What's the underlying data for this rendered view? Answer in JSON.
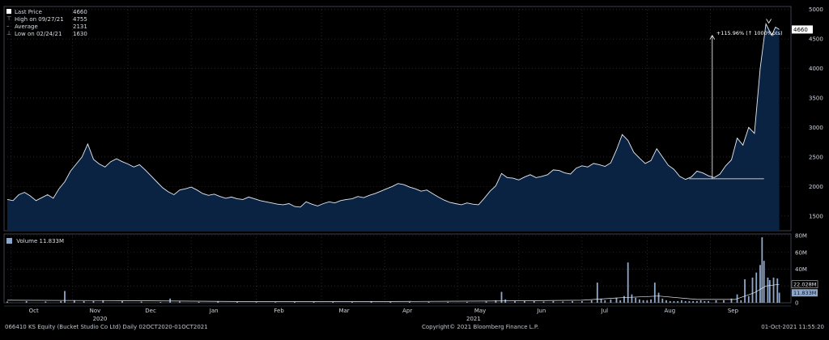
{
  "chart_data": {
    "type": "area",
    "legend": {
      "last_price_label": "Last Price",
      "last_price_value": "4660",
      "high_label": "High on 09/27/21",
      "high_value": "4755",
      "average_label": "Average",
      "average_value": "2131",
      "low_label": "Low on 02/24/21",
      "low_value": "1630"
    },
    "price_axis": {
      "ticks": [
        "5000",
        "4500",
        "4000",
        "3500",
        "3000",
        "2500",
        "2000",
        "1500"
      ],
      "ylim": [
        1250,
        5050
      ]
    },
    "last_price_tag": "4660",
    "annotation": "+115.96% (↑ 1000%pts)",
    "volume_legend": {
      "label": "Volume",
      "value": "11.833M"
    },
    "volume_axis": {
      "ticks": [
        "80M",
        "60M",
        "40M",
        "20M",
        "0"
      ],
      "ylim": [
        0,
        82
      ]
    },
    "volume_tags": [
      "22.028M",
      "11.833M"
    ],
    "months": [
      "Oct",
      "Nov",
      "Dec",
      "Jan",
      "Feb",
      "Mar",
      "Apr",
      "May",
      "Jun",
      "Jul",
      "Aug",
      "Sep"
    ],
    "years": [
      "2020",
      "2021"
    ],
    "price_series": [
      [
        0,
        1780
      ],
      [
        3,
        1760
      ],
      [
        6,
        1860
      ],
      [
        9,
        1900
      ],
      [
        12,
        1840
      ],
      [
        15,
        1760
      ],
      [
        18,
        1810
      ],
      [
        21,
        1860
      ],
      [
        24,
        1800
      ],
      [
        27,
        1960
      ],
      [
        30,
        2080
      ],
      [
        33,
        2260
      ],
      [
        36,
        2380
      ],
      [
        39,
        2500
      ],
      [
        42,
        2720
      ],
      [
        45,
        2460
      ],
      [
        48,
        2380
      ],
      [
        51,
        2330
      ],
      [
        54,
        2420
      ],
      [
        57,
        2470
      ],
      [
        60,
        2420
      ],
      [
        63,
        2380
      ],
      [
        66,
        2330
      ],
      [
        69,
        2370
      ],
      [
        72,
        2280
      ],
      [
        75,
        2180
      ],
      [
        78,
        2080
      ],
      [
        81,
        1980
      ],
      [
        84,
        1910
      ],
      [
        87,
        1860
      ],
      [
        90,
        1940
      ],
      [
        93,
        1960
      ],
      [
        96,
        1990
      ],
      [
        99,
        1940
      ],
      [
        102,
        1880
      ],
      [
        105,
        1850
      ],
      [
        108,
        1870
      ],
      [
        111,
        1830
      ],
      [
        114,
        1800
      ],
      [
        117,
        1820
      ],
      [
        120,
        1790
      ],
      [
        123,
        1780
      ],
      [
        126,
        1820
      ],
      [
        129,
        1790
      ],
      [
        132,
        1760
      ],
      [
        135,
        1740
      ],
      [
        138,
        1720
      ],
      [
        141,
        1700
      ],
      [
        144,
        1690
      ],
      [
        147,
        1710
      ],
      [
        150,
        1660
      ],
      [
        153,
        1650
      ],
      [
        156,
        1740
      ],
      [
        159,
        1700
      ],
      [
        162,
        1670
      ],
      [
        165,
        1710
      ],
      [
        168,
        1740
      ],
      [
        171,
        1720
      ],
      [
        174,
        1760
      ],
      [
        177,
        1780
      ],
      [
        180,
        1790
      ],
      [
        183,
        1830
      ],
      [
        186,
        1810
      ],
      [
        189,
        1850
      ],
      [
        192,
        1880
      ],
      [
        195,
        1920
      ],
      [
        198,
        1960
      ],
      [
        201,
        2000
      ],
      [
        204,
        2050
      ],
      [
        207,
        2030
      ],
      [
        210,
        1990
      ],
      [
        213,
        1960
      ],
      [
        216,
        1920
      ],
      [
        219,
        1940
      ],
      [
        222,
        1880
      ],
      [
        225,
        1820
      ],
      [
        228,
        1770
      ],
      [
        231,
        1730
      ],
      [
        234,
        1710
      ],
      [
        237,
        1690
      ],
      [
        240,
        1720
      ],
      [
        243,
        1700
      ],
      [
        246,
        1690
      ],
      [
        249,
        1800
      ],
      [
        252,
        1920
      ],
      [
        255,
        2010
      ],
      [
        258,
        2220
      ],
      [
        261,
        2150
      ],
      [
        264,
        2140
      ],
      [
        267,
        2110
      ],
      [
        270,
        2160
      ],
      [
        273,
        2200
      ],
      [
        276,
        2150
      ],
      [
        279,
        2170
      ],
      [
        282,
        2200
      ],
      [
        285,
        2280
      ],
      [
        288,
        2270
      ],
      [
        291,
        2230
      ],
      [
        294,
        2210
      ],
      [
        297,
        2310
      ],
      [
        300,
        2350
      ],
      [
        303,
        2330
      ],
      [
        306,
        2390
      ],
      [
        309,
        2370
      ],
      [
        312,
        2340
      ],
      [
        315,
        2400
      ],
      [
        318,
        2620
      ],
      [
        321,
        2880
      ],
      [
        324,
        2780
      ],
      [
        327,
        2580
      ],
      [
        330,
        2480
      ],
      [
        333,
        2390
      ],
      [
        336,
        2440
      ],
      [
        339,
        2640
      ],
      [
        342,
        2500
      ],
      [
        345,
        2360
      ],
      [
        348,
        2290
      ],
      [
        351,
        2170
      ],
      [
        354,
        2120
      ],
      [
        357,
        2160
      ],
      [
        360,
        2260
      ],
      [
        363,
        2230
      ],
      [
        366,
        2180
      ],
      [
        369,
        2150
      ],
      [
        372,
        2210
      ],
      [
        375,
        2350
      ],
      [
        378,
        2450
      ],
      [
        381,
        2820
      ],
      [
        384,
        2700
      ],
      [
        387,
        3000
      ],
      [
        390,
        2900
      ],
      [
        393,
        4000
      ],
      [
        396,
        4755
      ],
      [
        399,
        4560
      ],
      [
        401,
        4700
      ],
      [
        403,
        4660
      ]
    ],
    "volume_series": [
      [
        0,
        1.5
      ],
      [
        10,
        2
      ],
      [
        20,
        1.5
      ],
      [
        28,
        2
      ],
      [
        30,
        14
      ],
      [
        35,
        3
      ],
      [
        40,
        2
      ],
      [
        45,
        2
      ],
      [
        50,
        3
      ],
      [
        60,
        2
      ],
      [
        70,
        1.5
      ],
      [
        80,
        1
      ],
      [
        85,
        5
      ],
      [
        90,
        1.5
      ],
      [
        100,
        1
      ],
      [
        110,
        1.5
      ],
      [
        120,
        1
      ],
      [
        130,
        0.8
      ],
      [
        140,
        0.8
      ],
      [
        150,
        1
      ],
      [
        160,
        1
      ],
      [
        170,
        1
      ],
      [
        180,
        1
      ],
      [
        190,
        1.5
      ],
      [
        200,
        1
      ],
      [
        210,
        1
      ],
      [
        220,
        1
      ],
      [
        230,
        1
      ],
      [
        240,
        1
      ],
      [
        250,
        1.5
      ],
      [
        255,
        3
      ],
      [
        258,
        13
      ],
      [
        260,
        4
      ],
      [
        265,
        2
      ],
      [
        270,
        2
      ],
      [
        275,
        2
      ],
      [
        280,
        1.5
      ],
      [
        285,
        2
      ],
      [
        290,
        1.5
      ],
      [
        295,
        2
      ],
      [
        300,
        2
      ],
      [
        305,
        3
      ],
      [
        308,
        24
      ],
      [
        310,
        5
      ],
      [
        312,
        3
      ],
      [
        315,
        4
      ],
      [
        318,
        6
      ],
      [
        320,
        3
      ],
      [
        322,
        8
      ],
      [
        324,
        48
      ],
      [
        326,
        10
      ],
      [
        328,
        6
      ],
      [
        330,
        4
      ],
      [
        332,
        3
      ],
      [
        334,
        3
      ],
      [
        336,
        4
      ],
      [
        338,
        24
      ],
      [
        340,
        12
      ],
      [
        342,
        5
      ],
      [
        344,
        3
      ],
      [
        346,
        2
      ],
      [
        348,
        2
      ],
      [
        350,
        2
      ],
      [
        352,
        3
      ],
      [
        354,
        2
      ],
      [
        356,
        2
      ],
      [
        358,
        2
      ],
      [
        360,
        2
      ],
      [
        362,
        3
      ],
      [
        364,
        2
      ],
      [
        366,
        2
      ],
      [
        370,
        3
      ],
      [
        374,
        3
      ],
      [
        378,
        5
      ],
      [
        381,
        10
      ],
      [
        383,
        3
      ],
      [
        385,
        28
      ],
      [
        387,
        8
      ],
      [
        389,
        30
      ],
      [
        391,
        36
      ],
      [
        393,
        45
      ],
      [
        394,
        78
      ],
      [
        395,
        50
      ],
      [
        397,
        30
      ],
      [
        398,
        27
      ],
      [
        400,
        30
      ],
      [
        402,
        29
      ],
      [
        403,
        12
      ]
    ]
  },
  "footer": {
    "left": "066410 KS Equity (Bucket Studio Co Ltd)  Daily 02OCT2020-01OCT2021",
    "center": "Copyright© 2021 Bloomberg Finance L.P.",
    "right": "01-Oct-2021 11:55:20"
  },
  "colors": {
    "area_fill": "#0b2342",
    "line": "#e6ebf2",
    "volume_bar": "#8fa7c9",
    "grid": "#2f3640"
  }
}
